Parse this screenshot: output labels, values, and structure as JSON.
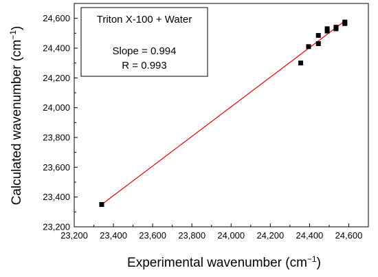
{
  "chart_data": {
    "type": "scatter",
    "xlabel": "Experimental wavenumber (cm",
    "ylabel": "Calculated wavenumber (cm",
    "unit_exponent": "−1",
    "xlim": [
      23200,
      24700
    ],
    "ylim": [
      23200,
      24700
    ],
    "x_ticks": [
      23200,
      23400,
      23600,
      23800,
      24000,
      24200,
      24400,
      24600
    ],
    "y_ticks": [
      23200,
      23400,
      23600,
      23800,
      24000,
      24200,
      24400,
      24600
    ],
    "x_tick_labels": [
      "23,200",
      "23,400",
      "23,600",
      "23,800",
      "24,000",
      "24,200",
      "24,400",
      "24,600"
    ],
    "y_tick_labels": [
      "23,200",
      "23,400",
      "23,600",
      "23,800",
      "24,000",
      "24,200",
      "24,400",
      "24,600"
    ],
    "grid": false,
    "legend_placement": "top-left",
    "annotation": {
      "title": "Triton X-100 + Water",
      "slope_text": "Slope = 0.994",
      "r_text": "R = 0.993"
    },
    "series": [
      {
        "marker": "square",
        "color": "#000000",
        "points": [
          {
            "x": 23340,
            "y": 23350
          },
          {
            "x": 24355,
            "y": 24300
          },
          {
            "x": 24395,
            "y": 24410
          },
          {
            "x": 24445,
            "y": 24430
          },
          {
            "x": 24445,
            "y": 24485
          },
          {
            "x": 24490,
            "y": 24515
          },
          {
            "x": 24490,
            "y": 24530
          },
          {
            "x": 24535,
            "y": 24530
          },
          {
            "x": 24535,
            "y": 24540
          },
          {
            "x": 24580,
            "y": 24565
          },
          {
            "x": 24580,
            "y": 24575
          }
        ]
      }
    ],
    "fit_line": {
      "color": "#e00000",
      "x_start": 23340,
      "x_end": 24585,
      "slope": 0.994,
      "intercept": 150
    }
  }
}
